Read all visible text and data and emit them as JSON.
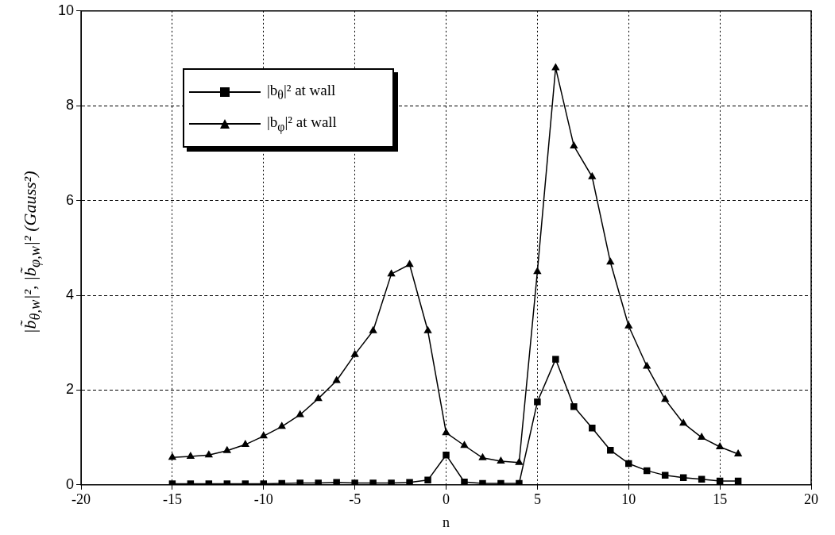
{
  "chart_data": {
    "type": "line",
    "xlabel": "n",
    "ylabel": "|b̃$_{θ,w}$|², |b̃$_{φ,w}$|² (Gauss²)",
    "x": [
      -15,
      -14,
      -13,
      -12,
      -11,
      -10,
      -9,
      -8,
      -7,
      -6,
      -5,
      -4,
      -3,
      -2,
      -1,
      0,
      1,
      2,
      3,
      4,
      5,
      6,
      7,
      8,
      9,
      10,
      11,
      12,
      13,
      14,
      15,
      16
    ],
    "series": [
      {
        "name": "|b$_{θ}$|² at wall",
        "color": "#000000",
        "marker": "square",
        "values": [
          0.02,
          0.02,
          0.02,
          0.02,
          0.02,
          0.02,
          0.03,
          0.04,
          0.04,
          0.05,
          0.04,
          0.04,
          0.04,
          0.05,
          0.1,
          0.63,
          0.06,
          0.03,
          0.03,
          0.03,
          1.75,
          2.65,
          1.65,
          1.2,
          0.73,
          0.45,
          0.3,
          0.2,
          0.15,
          0.12,
          0.08,
          0.08
        ]
      },
      {
        "name": "|b$_{φ}$|² at wall",
        "color": "#000000",
        "marker": "triangle",
        "values": [
          0.58,
          0.6,
          0.63,
          0.72,
          0.85,
          1.03,
          1.23,
          1.48,
          1.82,
          2.2,
          2.75,
          3.25,
          4.45,
          4.65,
          3.25,
          1.1,
          0.83,
          0.57,
          0.5,
          0.47,
          4.5,
          8.8,
          7.15,
          6.5,
          4.7,
          3.35,
          2.5,
          1.8,
          1.3,
          1.0,
          0.8,
          0.65
        ]
      }
    ],
    "xlim": [
      -20,
      20
    ],
    "xticks": [
      -20,
      -15,
      -10,
      -5,
      0,
      5,
      10,
      15,
      20
    ],
    "ylim": [
      0,
      10
    ],
    "yticks": [
      0,
      2,
      4,
      6,
      8,
      10
    ],
    "grid": true,
    "legend": "top left",
    "line_style": "solid"
  }
}
